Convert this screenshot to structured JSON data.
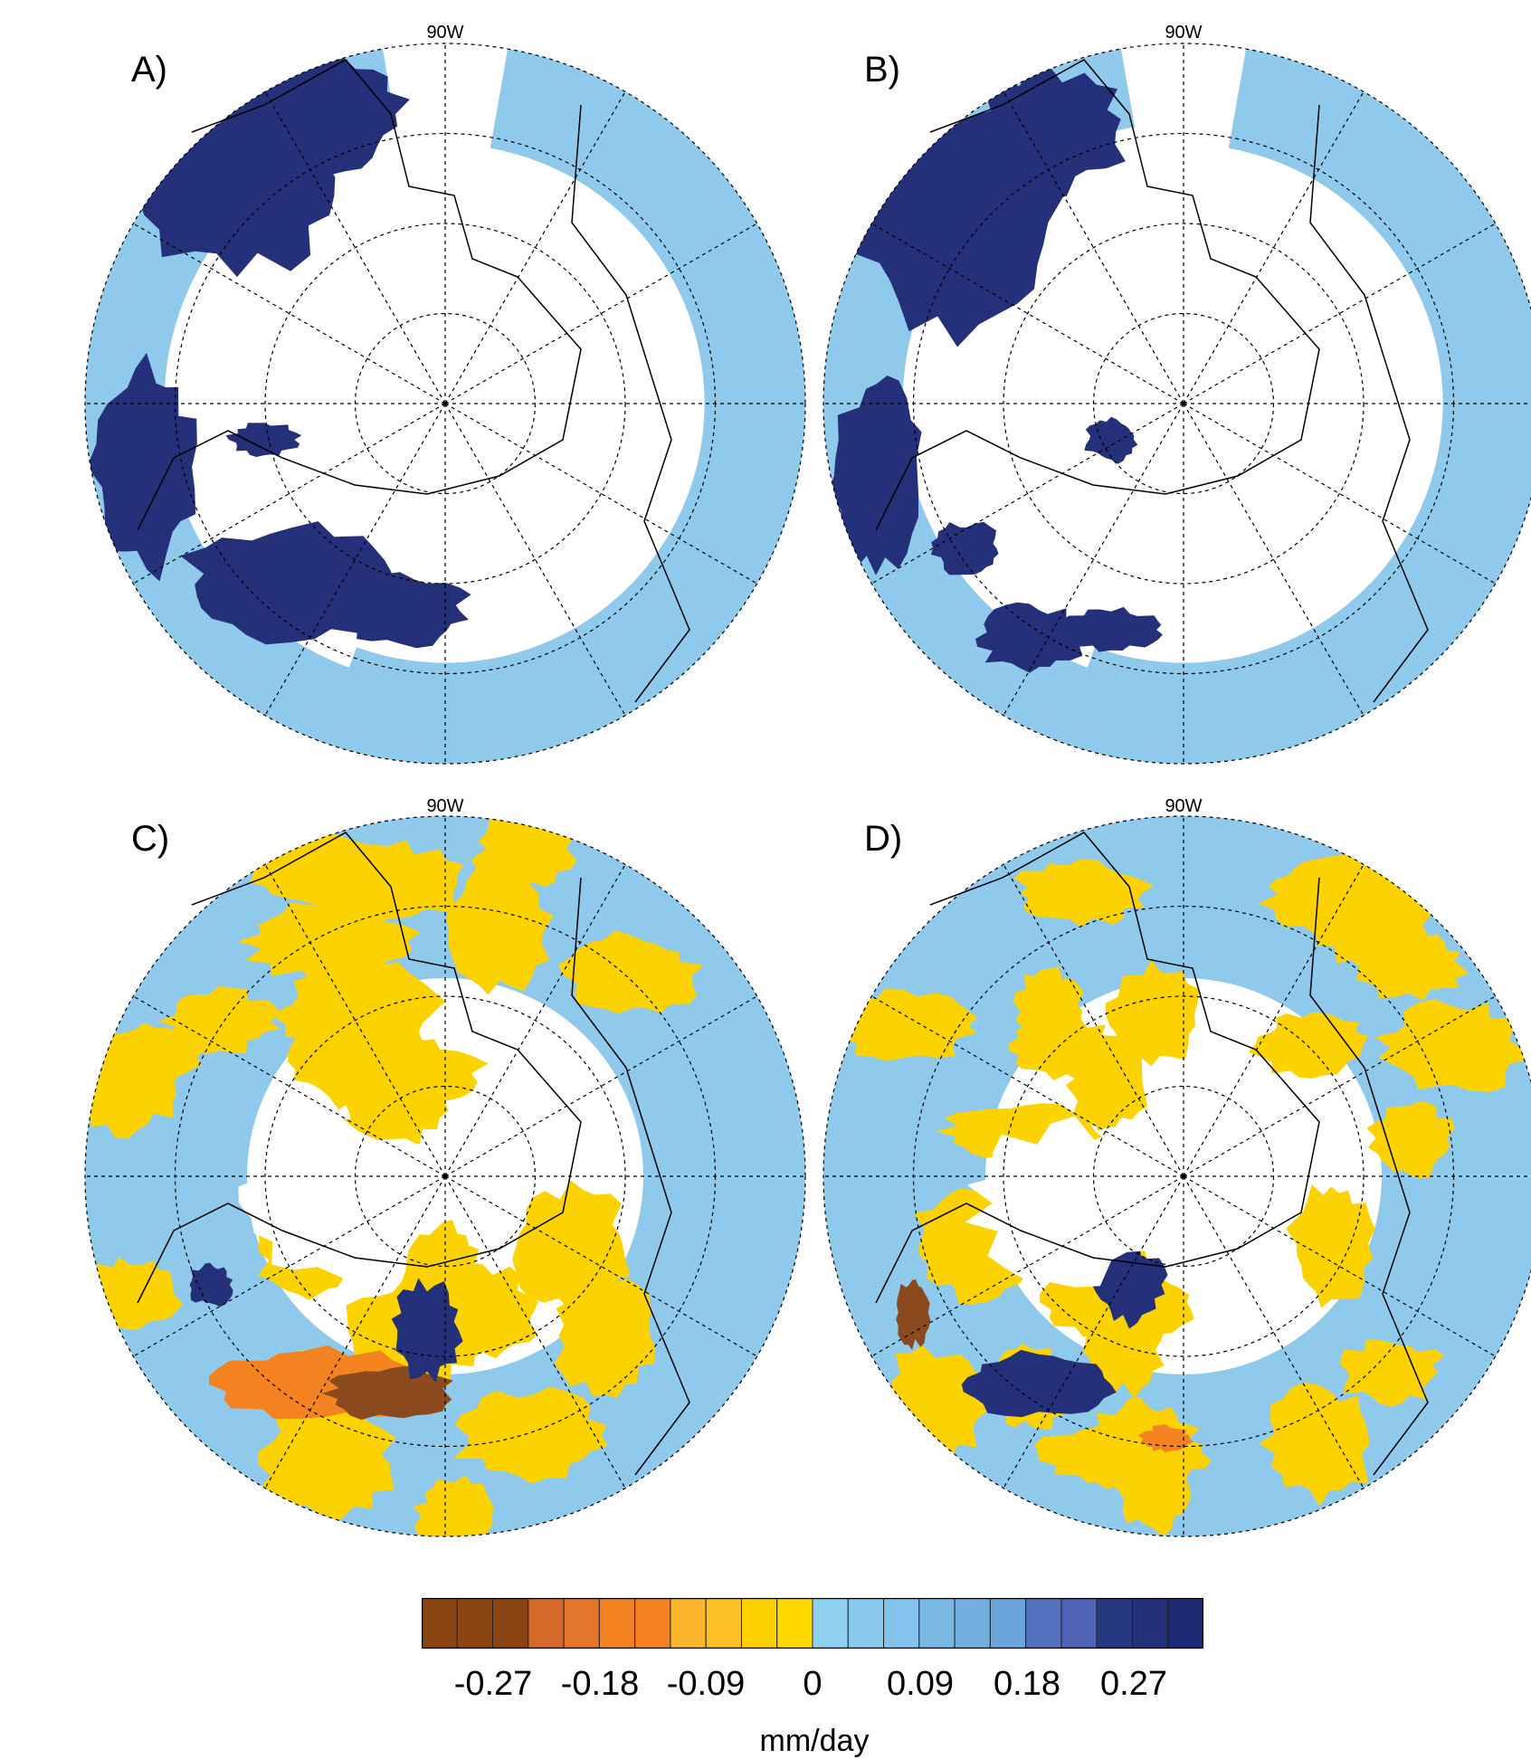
{
  "panels": [
    {
      "letter": "A)",
      "lon_label": "90W",
      "pattern": "A"
    },
    {
      "letter": "B)",
      "lon_label": "90W",
      "pattern": "B"
    },
    {
      "letter": "C)",
      "lon_label": "90W",
      "pattern": "C"
    },
    {
      "letter": "D)",
      "lon_label": "90W",
      "pattern": "D"
    }
  ],
  "colorbar": {
    "colors": [
      "#8b4513",
      "#8b4513",
      "#8b4513",
      "#d4692a",
      "#e3762a",
      "#f58220",
      "#f58220",
      "#fbb52a",
      "#fcc026",
      "#fdd000",
      "#fdd900",
      "#8fd0f0",
      "#89c9ee",
      "#83c2ea",
      "#7ab8e4",
      "#72aee0",
      "#6aa6db",
      "#5572c0",
      "#4e63b5",
      "#26387f",
      "#22307a",
      "#1c2a74"
    ],
    "tick_labels": [
      "-0.27",
      "-0.18",
      "-0.09",
      "0",
      "0.09",
      "0.18",
      "0.27"
    ],
    "units": "mm/day"
  },
  "legend_colors": {
    "dark_blue": "#24317a",
    "light_blue": "#8fc9ec",
    "mid_blue": "#6aa3d9",
    "yellow": "#fcd200",
    "orange": "#f58220",
    "brown": "#8b4a1d"
  }
}
